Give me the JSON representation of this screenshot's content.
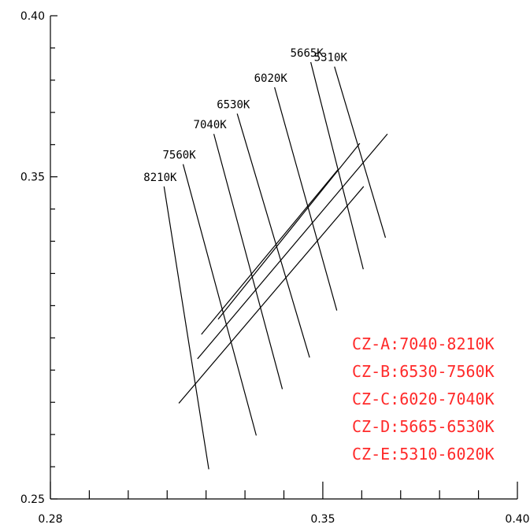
{
  "chart_data": {
    "type": "diagram",
    "x_axis": {
      "ticks": [
        0.28,
        0.35,
        0.4
      ],
      "tick_labels": [
        "0.28",
        "0.35",
        "0.40"
      ],
      "range": [
        0.28,
        0.4
      ],
      "minor_step": 0.01
    },
    "y_axis": {
      "ticks": [
        0.25,
        0.35,
        0.4
      ],
      "tick_labels": [
        "0.25",
        "0.35",
        "0.40"
      ],
      "range": [
        0.25,
        0.4
      ],
      "minor_step": 0.01
    },
    "isotherms": [
      {
        "label": "8210K",
        "top": [
          0.3092,
          0.347
        ],
        "bottom": [
          0.3207,
          0.2592
        ]
      },
      {
        "label": "7560K",
        "top": [
          0.3141,
          0.3539
        ],
        "bottom": [
          0.3329,
          0.2697
        ]
      },
      {
        "label": "7040K",
        "top": [
          0.322,
          0.3633
        ],
        "bottom": [
          0.3396,
          0.2841
        ]
      },
      {
        "label": "6530K",
        "top": [
          0.328,
          0.3696
        ],
        "bottom": [
          0.3466,
          0.2939
        ]
      },
      {
        "label": "6020K",
        "top": [
          0.3376,
          0.3778
        ],
        "bottom": [
          0.3536,
          0.3085
        ]
      },
      {
        "label": "5665K",
        "top": [
          0.3469,
          0.3856
        ],
        "bottom": [
          0.3604,
          0.3213
        ]
      },
      {
        "label": "5310K",
        "top": [
          0.353,
          0.3842
        ],
        "bottom": [
          0.3661,
          0.3311
        ]
      }
    ],
    "cross_lines": [
      [
        [
          0.313,
          0.2797
        ],
        [
          0.3605,
          0.347
        ]
      ],
      [
        [
          0.3178,
          0.2935
        ],
        [
          0.3666,
          0.3633
        ]
      ],
      [
        [
          0.3231,
          0.3058
        ],
        [
          0.3595,
          0.3604
        ]
      ],
      [
        [
          0.3188,
          0.3011
        ],
        [
          0.354,
          0.3524
        ]
      ]
    ],
    "legend": {
      "color": "#ff2a2a",
      "entries": [
        "CZ-A:7040-8210K",
        "CZ-B:6530-7560K",
        "CZ-C:6020-7040K",
        "CZ-D:5665-6530K",
        "CZ-E:5310-6020K"
      ]
    }
  }
}
